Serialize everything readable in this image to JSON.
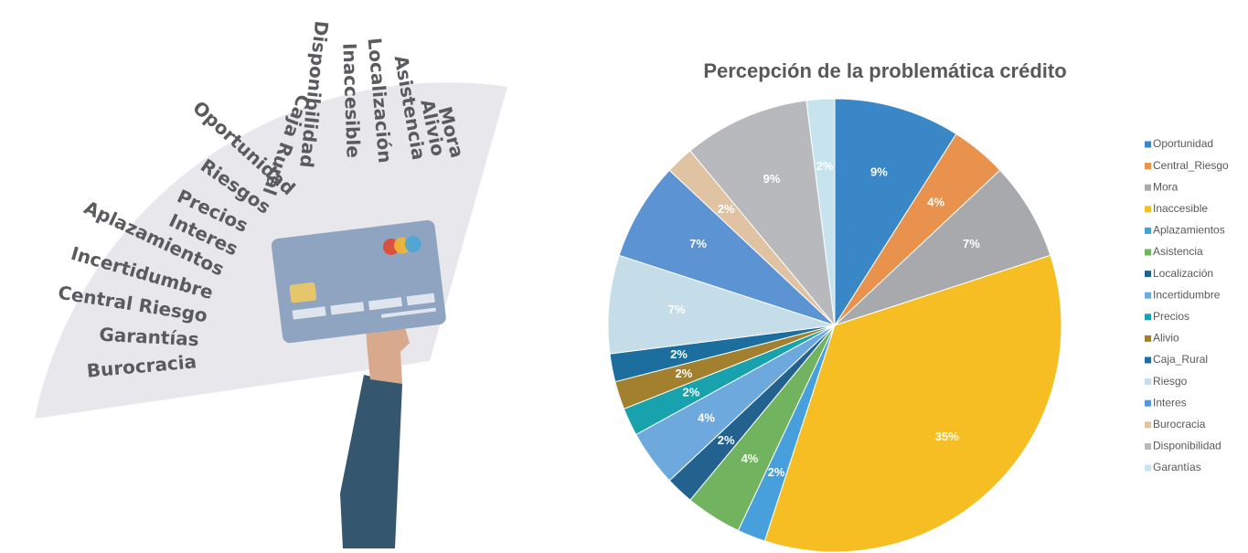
{
  "illustration": {
    "words": [
      "Mora",
      "Alivio",
      "Asistencia",
      "Localización",
      "Inaccesible",
      "Disponibilidad",
      "Caja Rural",
      "Oportunidad",
      "Riesgos",
      "Precios",
      "Interes",
      "Aplazamientos",
      "Incertidumbre",
      "Central Riesgo",
      "Garantías",
      "Burocracia"
    ]
  },
  "chart_data": {
    "type": "pie",
    "title": "Percepción de la problemática crédito",
    "categories": [
      "Oportunidad",
      "Central_Riesgo",
      "Mora",
      "Inaccesible",
      "Aplazamientos",
      "Asistencia",
      "Localización",
      "Incertidumbre",
      "Precios",
      "Alivio",
      "Caja_Rural",
      "Riesgo",
      "Interes",
      "Burocracia",
      "Disponibilidad",
      "Garantías"
    ],
    "values": [
      9,
      4,
      7,
      35,
      2,
      4,
      2,
      4,
      2,
      2,
      2,
      7,
      7,
      2,
      9,
      2
    ],
    "value_labels": [
      "9%",
      "4%",
      "7%",
      "35%",
      "2%",
      "4%",
      "2%",
      "4%",
      "2%",
      "2%",
      "2%",
      "7%",
      "7%",
      "2%",
      "9%",
      "2%"
    ],
    "colors": [
      "#3a87c8",
      "#e8924e",
      "#a7a9ac",
      "#f6be22",
      "#47a0db",
      "#72b360",
      "#23628f",
      "#6ea9dd",
      "#17a2ad",
      "#a2802e",
      "#1b6e9e",
      "#c5dde8",
      "#5b93d3",
      "#dfc3a3",
      "#b7b9bd",
      "#c7e3ee"
    ],
    "legend": "right"
  }
}
